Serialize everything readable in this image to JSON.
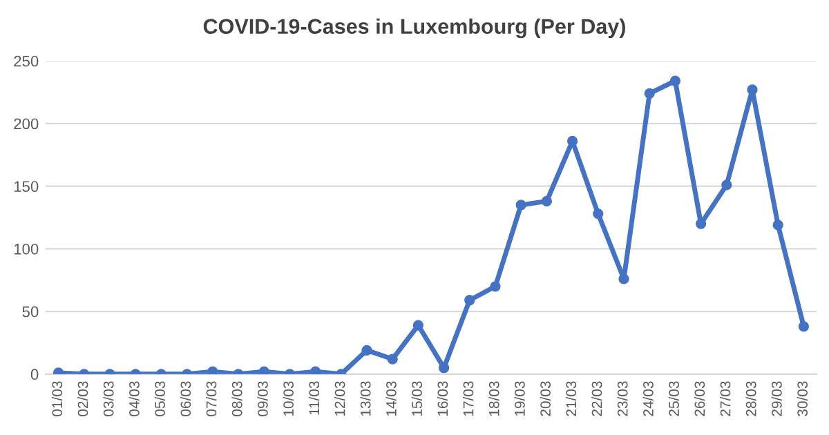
{
  "chart_data": {
    "type": "line",
    "title": "COVID-19-Cases in Luxembourg (Per Day)",
    "categories": [
      "01/03",
      "02/03",
      "03/03",
      "04/03",
      "05/03",
      "06/03",
      "07/03",
      "08/03",
      "09/03",
      "10/03",
      "11/03",
      "12/03",
      "13/03",
      "14/03",
      "15/03",
      "16/03",
      "17/03",
      "18/03",
      "19/03",
      "20/03",
      "21/03",
      "22/03",
      "23/03",
      "24/03",
      "25/03",
      "26/03",
      "27/03",
      "28/03",
      "29/03",
      "30/03"
    ],
    "series": [
      {
        "color": "#4472c4",
        "values": [
          1,
          0,
          0,
          0,
          0,
          0,
          2,
          0,
          2,
          0,
          2,
          0,
          19,
          12,
          39,
          5,
          59,
          70,
          135,
          138,
          186,
          128,
          76,
          224,
          234,
          120,
          151,
          227,
          119,
          38
        ]
      }
    ],
    "ylim": [
      0,
      250
    ],
    "yticks": [
      0,
      50,
      100,
      150,
      200,
      250
    ],
    "grid": "y",
    "marker": "circle",
    "line_style": "solid"
  }
}
